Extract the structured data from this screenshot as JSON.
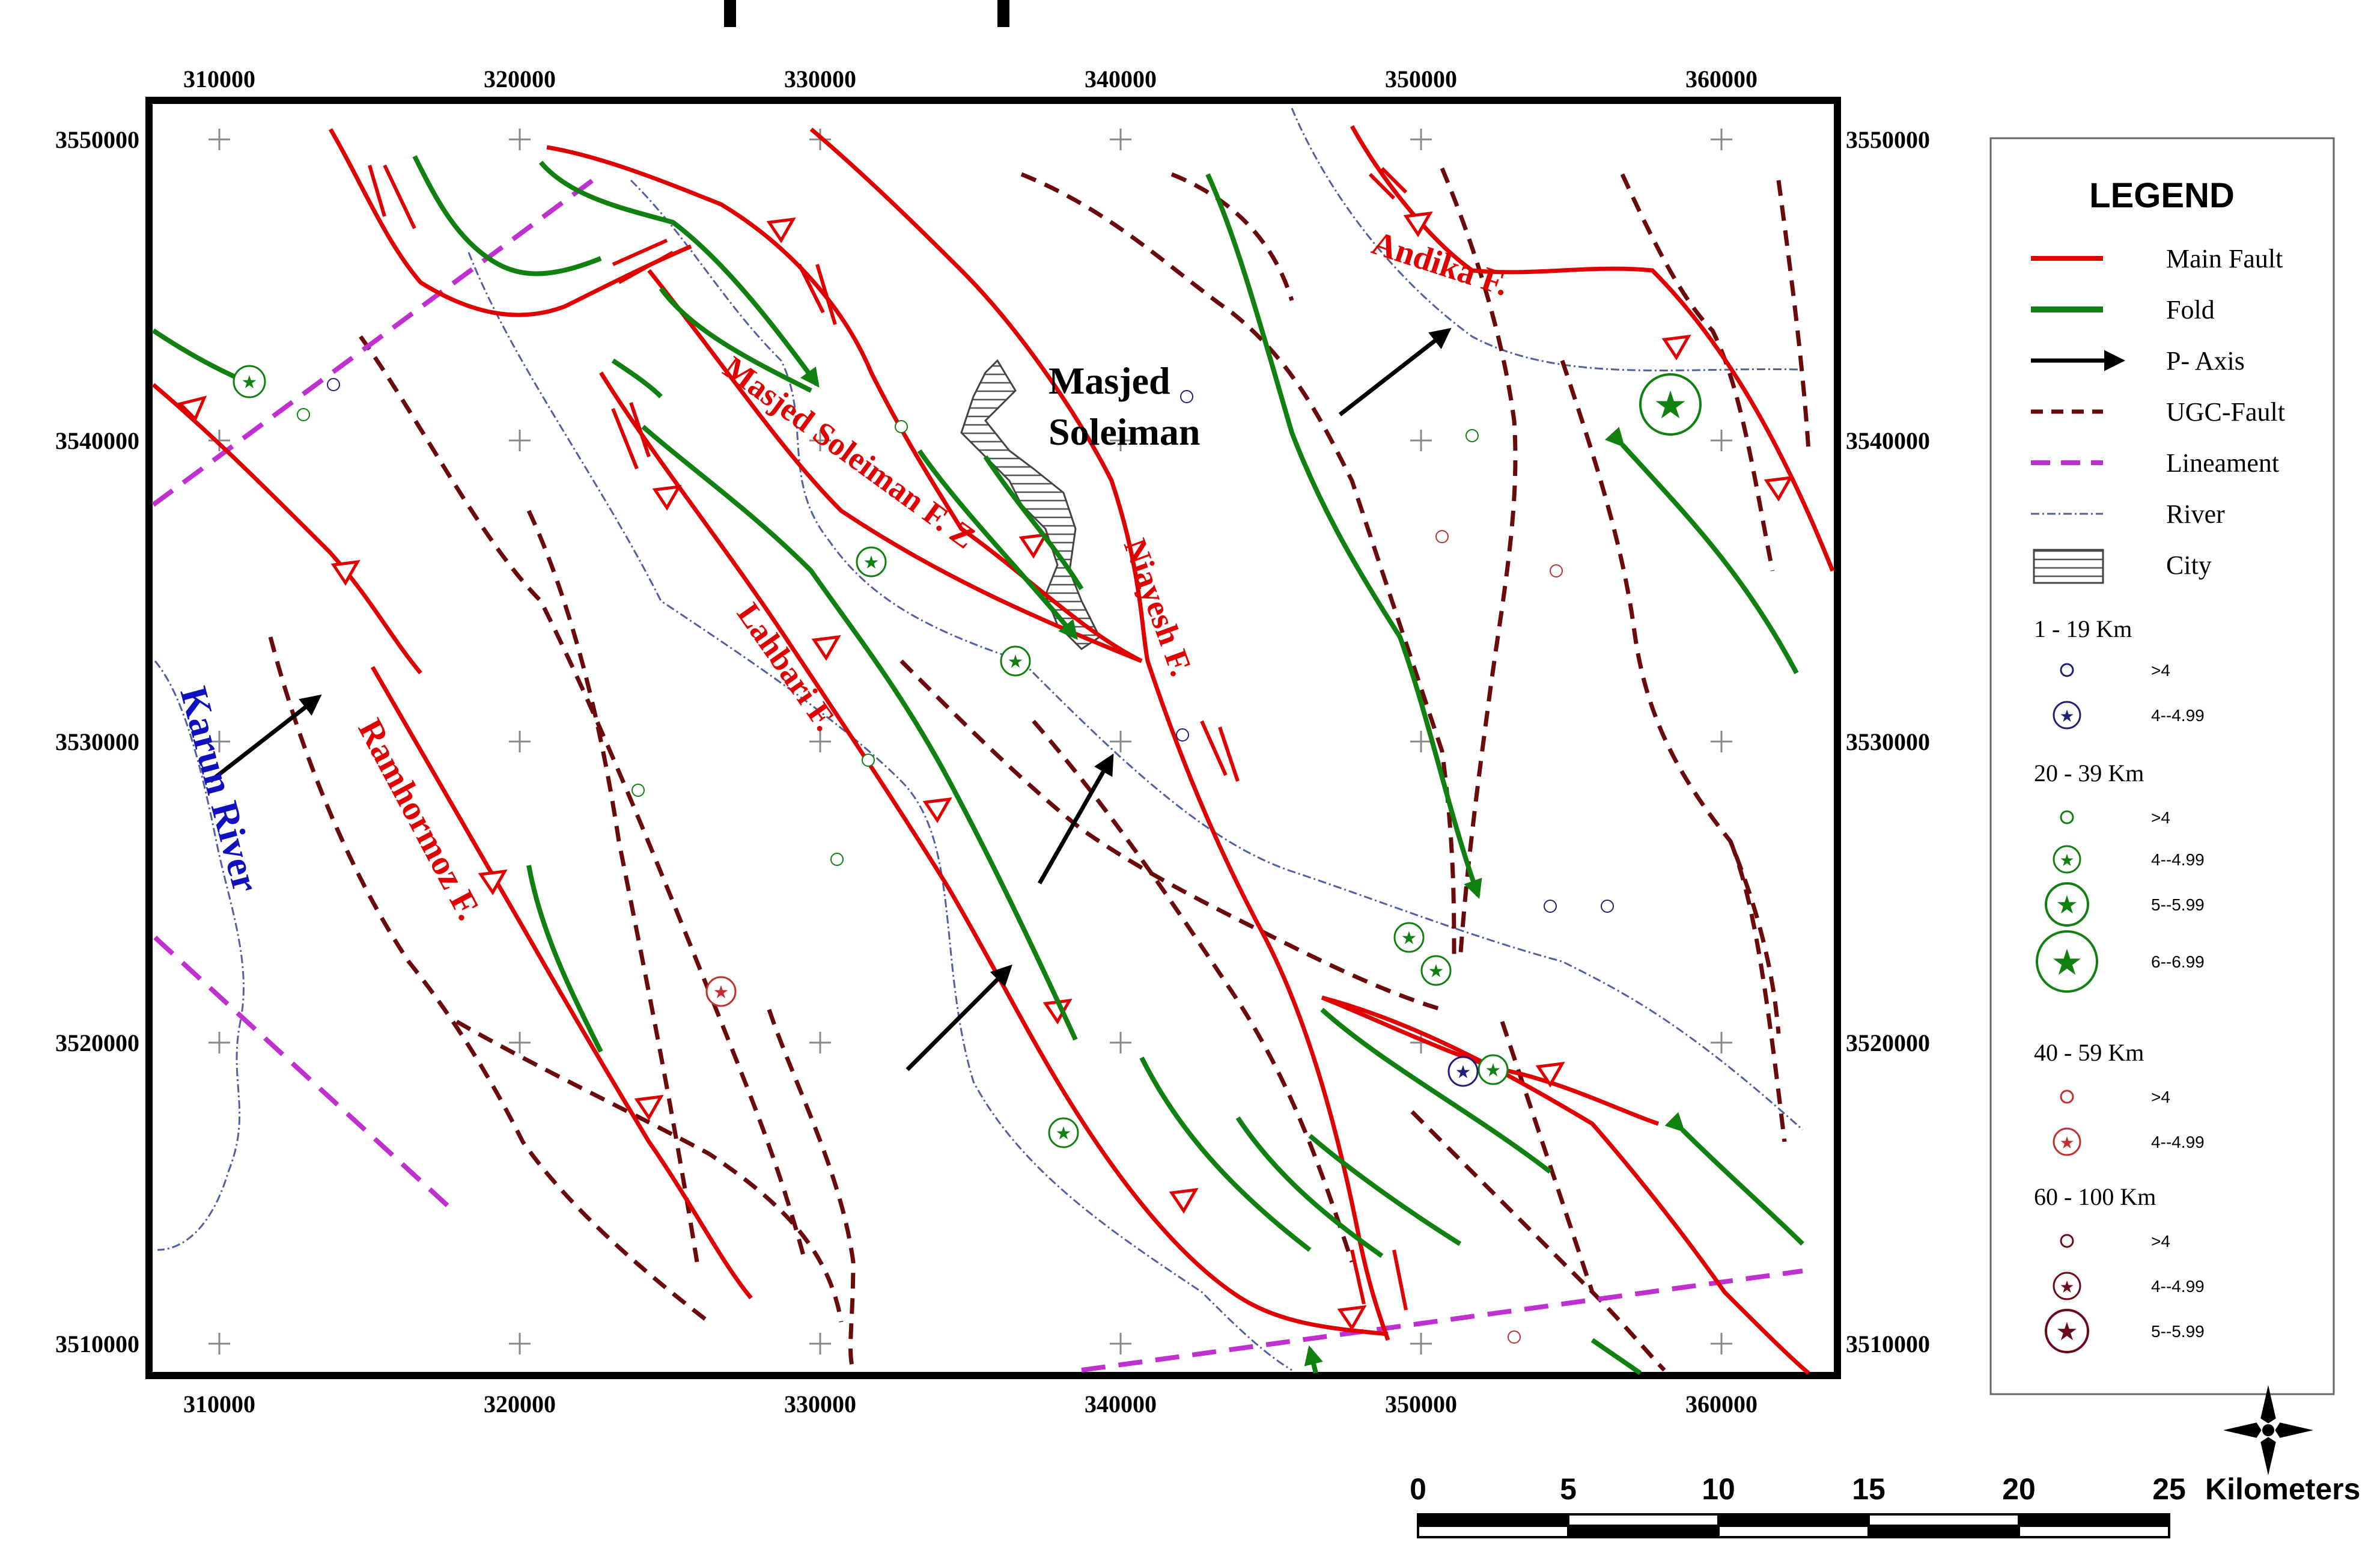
{
  "map": {
    "x_ticks": [
      "310000",
      "320000",
      "330000",
      "340000",
      "350000",
      "360000"
    ],
    "y_ticks": [
      "3550000",
      "3540000",
      "3530000",
      "3520000",
      "3510000"
    ],
    "labels": {
      "andika": "Andika F.",
      "masjed_soleiman_fz": "Masjed Soleiman F. Z",
      "niayesh": "Niayesh F.",
      "lahbari": "Lahbari F.",
      "ramhormoz": "Ramhormoz F.",
      "karun_river": "Karun River",
      "city_line1": "Masjed",
      "city_line2": "Soleiman"
    },
    "colors": {
      "main_fault": "#e00000",
      "fold": "#108010",
      "p_axis": "#000000",
      "ugc_fault": "#6a0a0a",
      "lineament": "#c030d0",
      "river": "#5060a0",
      "blue_label": "#1010c0"
    }
  },
  "legend": {
    "title": "LEGEND",
    "items": [
      "Main Fault",
      "Fold",
      "P- Axis",
      "UGC-Fault",
      "Lineament",
      "River",
      "City"
    ],
    "groups": [
      {
        "label": "1 - 19 Km",
        "entries": [
          ">4",
          "4--4.99"
        ],
        "color": "#20207a"
      },
      {
        "label": "20 - 39 Km",
        "entries": [
          ">4",
          "4--4.99",
          "5--5.99",
          "6--6.99"
        ],
        "color": "#108010"
      },
      {
        "label": "40 - 59 Km",
        "entries": [
          ">4",
          "4--4.99"
        ],
        "color": "#c03030"
      },
      {
        "label": "60 - 100 Km",
        "entries": [
          ">4",
          "4--4.99",
          "5--5.99"
        ],
        "color": "#6a0a1a"
      }
    ]
  },
  "scale": {
    "ticks": [
      "0",
      "5",
      "10",
      "15",
      "20",
      "25"
    ],
    "unit": "Kilometers"
  }
}
